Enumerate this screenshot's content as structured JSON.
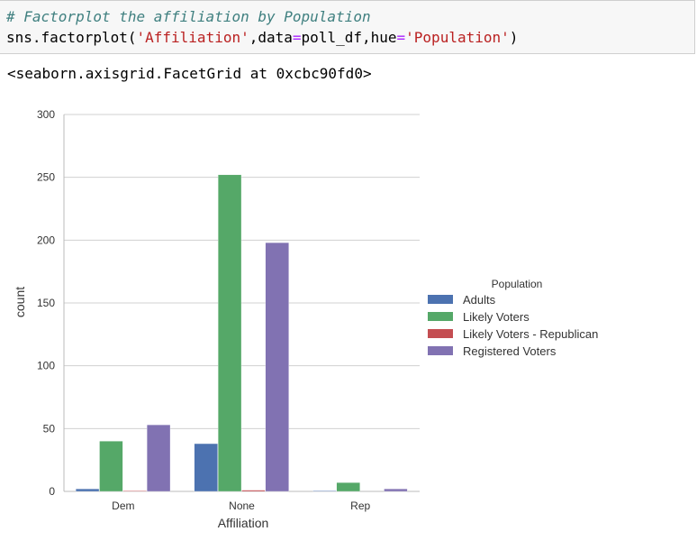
{
  "cell": {
    "comment": "# Factorplot the affiliation by Population",
    "code": {
      "fn": "sns.factorplot(",
      "arg1": "'Affiliation'",
      "sep1": ",data",
      "eq1": "=",
      "arg2": "poll_df,hue",
      "eq2": "=",
      "arg3": "'Population'",
      "close": ")"
    }
  },
  "output": {
    "repr": "<seaborn.axisgrid.FacetGrid at 0xcbc90fd0>"
  },
  "colors": {
    "adults": "#4c72b0",
    "likely": "#55a868",
    "likely_rep": "#c44e52",
    "registered": "#8172b2",
    "grid": "#d0d0d0"
  },
  "chart_data": {
    "type": "bar",
    "title": "",
    "xlabel": "Affiliation",
    "ylabel": "count",
    "categories": [
      "Dem",
      "None",
      "Rep"
    ],
    "ylim": [
      0,
      300
    ],
    "yticks": [
      0,
      50,
      100,
      150,
      200,
      250,
      300
    ],
    "grid": true,
    "legend_title": "Population",
    "legend_position": "right",
    "series": [
      {
        "name": "Adults",
        "values": [
          2,
          38,
          0.5
        ]
      },
      {
        "name": "Likely Voters",
        "values": [
          40,
          252,
          7
        ]
      },
      {
        "name": "Likely Voters - Republican",
        "values": [
          0.5,
          1,
          0
        ]
      },
      {
        "name": "Registered Voters",
        "values": [
          53,
          198,
          2
        ]
      }
    ]
  }
}
